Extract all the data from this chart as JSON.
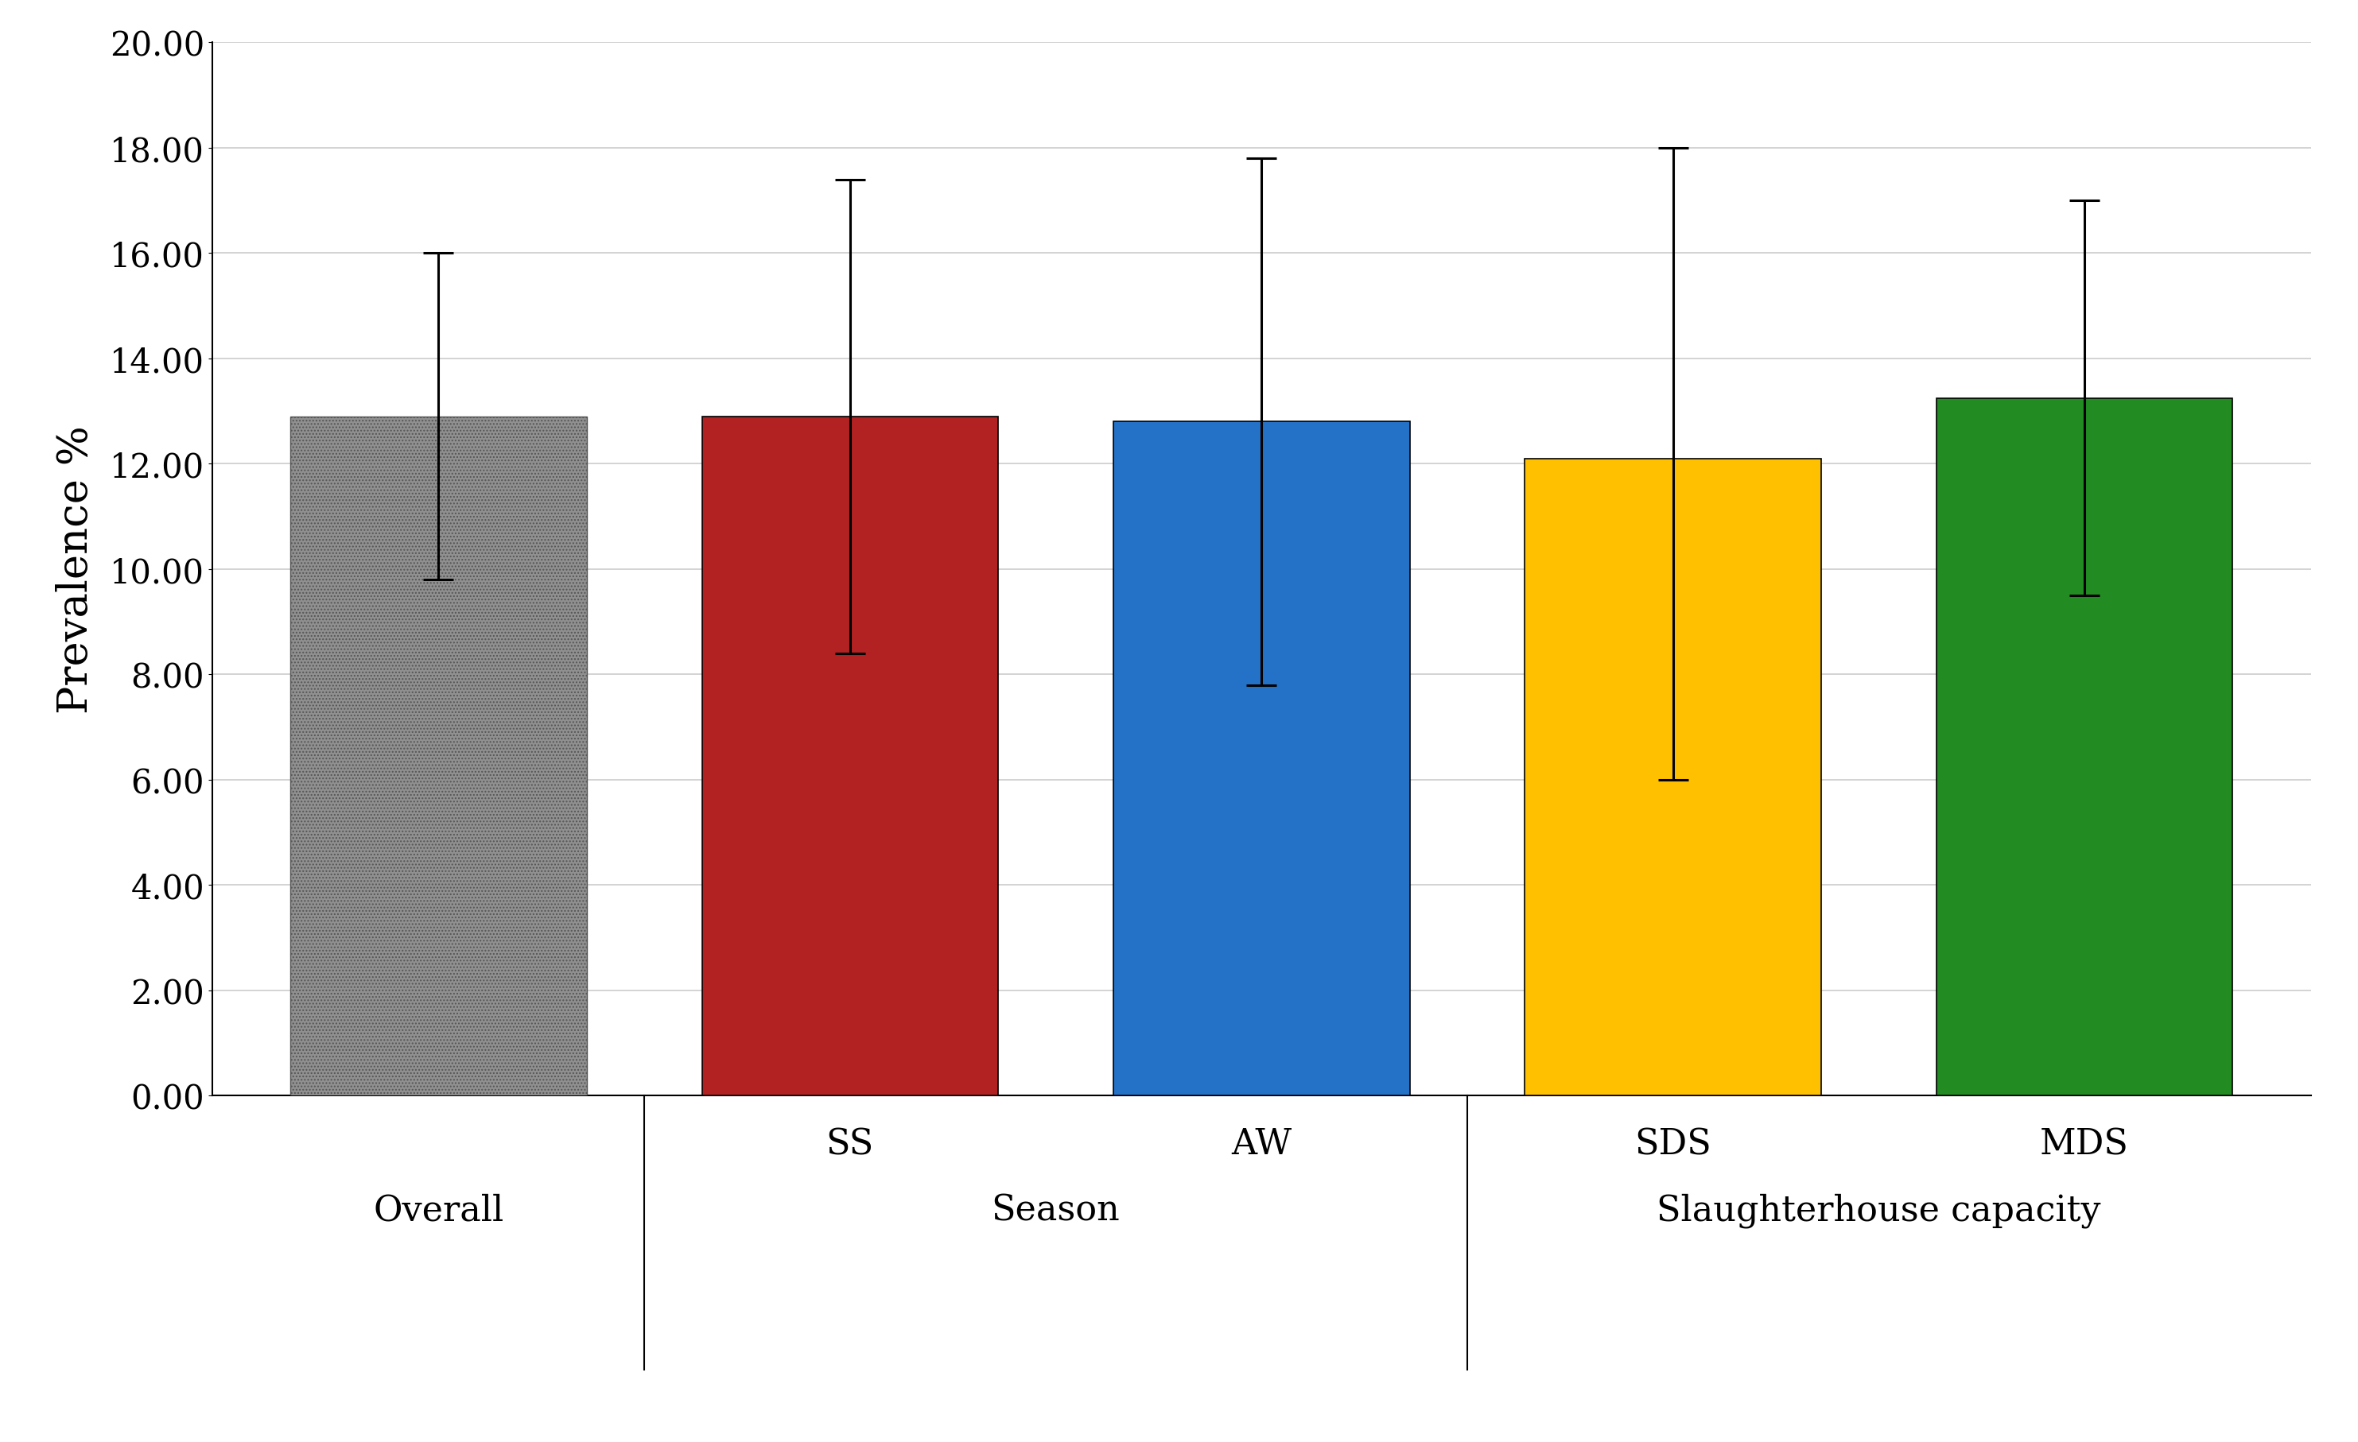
{
  "categories": [
    "Overall",
    "SS",
    "AW",
    "SDS",
    "MDS"
  ],
  "values": [
    12.9,
    12.9,
    12.8,
    12.1,
    13.25
  ],
  "errors_upper": [
    3.1,
    4.5,
    5.0,
    5.9,
    3.75
  ],
  "errors_lower": [
    3.1,
    4.5,
    5.0,
    6.1,
    3.75
  ],
  "bar_colors": [
    "#909090",
    "#B22222",
    "#2472C8",
    "#FFC000",
    "#228B22"
  ],
  "bar_hatches": [
    "....",
    "",
    "",
    "",
    ""
  ],
  "ylabel": "Prevalence %",
  "ylim": [
    0,
    20
  ],
  "yticks": [
    0.0,
    2.0,
    4.0,
    6.0,
    8.0,
    10.0,
    12.0,
    14.0,
    16.0,
    18.0,
    20.0
  ],
  "group_labels": [
    "Overall",
    "Season",
    "Slaughterhouse capacity"
  ],
  "group_positions": [
    0,
    1.5,
    3.5
  ],
  "group_dividers": [
    0.5,
    2.5
  ],
  "bar_sub_labels": [
    "",
    "SS",
    "AW",
    "SDS",
    "MDS"
  ],
  "bar_positions": [
    0,
    1,
    2,
    3,
    4
  ],
  "background_color": "#ffffff",
  "grid_color": "#cccccc",
  "bar_width": 0.72,
  "xlim": [
    -0.55,
    4.55
  ]
}
